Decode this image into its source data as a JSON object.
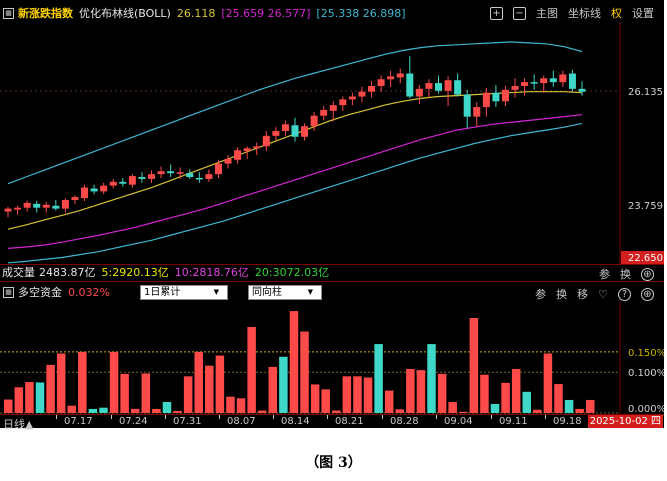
{
  "header": {
    "main_label": "新涨跌指数",
    "indicator": "优化布林线(BOLL)",
    "mid_value": "26.118",
    "upper_pair": "[25.659 26.577]",
    "lower_pair": "[25.338 26.898]",
    "buttons": {
      "main": "主图",
      "coord": "坐标线",
      "weight": "权",
      "settings": "设置"
    }
  },
  "price_axis": {
    "labels": [
      "26.135",
      "23.759",
      "22.650"
    ]
  },
  "volume": {
    "label": "成交量",
    "total": "2483.87亿",
    "ma5": "5:2920.13亿",
    "ma10": "10:2818.76亿",
    "ma20": "20:3072.03亿",
    "tools": [
      "参",
      "换"
    ]
  },
  "flow": {
    "title": "多空资金",
    "value": "0.032%",
    "select_accum": "1日累计",
    "select_mode": "同向柱",
    "tools": [
      "参",
      "换",
      "移"
    ],
    "axis_labels": [
      "0.150%",
      "0.100%",
      "0.000%"
    ],
    "bars": [
      {
        "v": 0.033,
        "c": "red"
      },
      {
        "v": 0.063,
        "c": "red"
      },
      {
        "v": 0.076,
        "c": "red"
      },
      {
        "v": 0.075,
        "c": "cyan"
      },
      {
        "v": 0.118,
        "c": "red"
      },
      {
        "v": 0.146,
        "c": "red"
      },
      {
        "v": 0.018,
        "c": "red"
      },
      {
        "v": 0.15,
        "c": "red"
      },
      {
        "v": 0.01,
        "c": "cyan"
      },
      {
        "v": 0.013,
        "c": "cyan"
      },
      {
        "v": 0.15,
        "c": "red"
      },
      {
        "v": 0.096,
        "c": "red"
      },
      {
        "v": 0.01,
        "c": "red"
      },
      {
        "v": 0.097,
        "c": "red"
      },
      {
        "v": 0.01,
        "c": "red"
      },
      {
        "v": 0.027,
        "c": "cyan"
      },
      {
        "v": 0.005,
        "c": "red"
      },
      {
        "v": 0.09,
        "c": "red"
      },
      {
        "v": 0.15,
        "c": "red"
      },
      {
        "v": 0.116,
        "c": "red"
      },
      {
        "v": 0.141,
        "c": "red"
      },
      {
        "v": 0.04,
        "c": "red"
      },
      {
        "v": 0.036,
        "c": "red"
      },
      {
        "v": 0.211,
        "c": "red"
      },
      {
        "v": 0.006,
        "c": "red"
      },
      {
        "v": 0.113,
        "c": "red"
      },
      {
        "v": 0.138,
        "c": "cyan"
      },
      {
        "v": 0.25,
        "c": "red"
      },
      {
        "v": 0.2,
        "c": "red"
      },
      {
        "v": 0.07,
        "c": "red"
      },
      {
        "v": 0.058,
        "c": "red"
      },
      {
        "v": 0.006,
        "c": "red"
      },
      {
        "v": 0.09,
        "c": "red"
      },
      {
        "v": 0.09,
        "c": "red"
      },
      {
        "v": 0.087,
        "c": "red"
      },
      {
        "v": 0.169,
        "c": "cyan"
      },
      {
        "v": 0.055,
        "c": "red"
      },
      {
        "v": 0.009,
        "c": "red"
      },
      {
        "v": 0.108,
        "c": "red"
      },
      {
        "v": 0.105,
        "c": "red"
      },
      {
        "v": 0.169,
        "c": "cyan"
      },
      {
        "v": 0.096,
        "c": "red"
      },
      {
        "v": 0.027,
        "c": "red"
      },
      {
        "v": 0.003,
        "c": "red"
      },
      {
        "v": 0.233,
        "c": "red"
      },
      {
        "v": 0.094,
        "c": "red"
      },
      {
        "v": 0.022,
        "c": "cyan"
      },
      {
        "v": 0.074,
        "c": "red"
      },
      {
        "v": 0.108,
        "c": "red"
      },
      {
        "v": 0.052,
        "c": "cyan"
      },
      {
        "v": 0.008,
        "c": "red"
      },
      {
        "v": 0.146,
        "c": "red"
      },
      {
        "v": 0.071,
        "c": "red"
      },
      {
        "v": 0.032,
        "c": "cyan"
      },
      {
        "v": 0.01,
        "c": "red"
      },
      {
        "v": 0.032,
        "c": "red"
      }
    ]
  },
  "footer": {
    "period": "日线",
    "dates": [
      "07.17",
      "07.24",
      "07.31",
      "08.07",
      "08.14",
      "08.21",
      "08.28",
      "09.04",
      "09.11",
      "09.18"
    ],
    "current_date": "2025-10-02 四"
  },
  "caption": "（图 3）",
  "colors": {
    "up": "#ff4a4a",
    "down": "#3fd7c8",
    "boll_upper": "#3fb7d2",
    "boll_mid": "#d7c336",
    "boll_lower": "#d424d4",
    "ma5": "#e8e800",
    "ma10": "#e040e0",
    "ma20": "#30d030"
  },
  "chart_data": {
    "type": "candlestick",
    "ylim": [
      22.65,
      27.45
    ],
    "candles": [
      {
        "o": 23.62,
        "h": 23.72,
        "l": 23.5,
        "c": 23.68
      },
      {
        "o": 23.66,
        "h": 23.74,
        "l": 23.55,
        "c": 23.7
      },
      {
        "o": 23.7,
        "h": 23.85,
        "l": 23.62,
        "c": 23.8
      },
      {
        "o": 23.78,
        "h": 23.84,
        "l": 23.6,
        "c": 23.7
      },
      {
        "o": 23.7,
        "h": 23.82,
        "l": 23.6,
        "c": 23.76
      },
      {
        "o": 23.74,
        "h": 23.86,
        "l": 23.64,
        "c": 23.68
      },
      {
        "o": 23.68,
        "h": 23.9,
        "l": 23.6,
        "c": 23.86
      },
      {
        "o": 23.86,
        "h": 23.96,
        "l": 23.78,
        "c": 23.92
      },
      {
        "o": 23.9,
        "h": 24.18,
        "l": 23.84,
        "c": 24.12
      },
      {
        "o": 24.1,
        "h": 24.18,
        "l": 23.98,
        "c": 24.04
      },
      {
        "o": 24.04,
        "h": 24.22,
        "l": 23.98,
        "c": 24.16
      },
      {
        "o": 24.16,
        "h": 24.3,
        "l": 24.1,
        "c": 24.24
      },
      {
        "o": 24.24,
        "h": 24.32,
        "l": 24.14,
        "c": 24.2
      },
      {
        "o": 24.18,
        "h": 24.4,
        "l": 24.12,
        "c": 24.36
      },
      {
        "o": 24.34,
        "h": 24.44,
        "l": 24.22,
        "c": 24.3
      },
      {
        "o": 24.3,
        "h": 24.48,
        "l": 24.22,
        "c": 24.4
      },
      {
        "o": 24.4,
        "h": 24.56,
        "l": 24.32,
        "c": 24.46
      },
      {
        "o": 24.46,
        "h": 24.6,
        "l": 24.34,
        "c": 24.42
      },
      {
        "o": 24.42,
        "h": 24.54,
        "l": 24.3,
        "c": 24.44
      },
      {
        "o": 24.42,
        "h": 24.5,
        "l": 24.3,
        "c": 24.34
      },
      {
        "o": 24.32,
        "h": 24.44,
        "l": 24.22,
        "c": 24.3
      },
      {
        "o": 24.3,
        "h": 24.5,
        "l": 24.24,
        "c": 24.4
      },
      {
        "o": 24.4,
        "h": 24.7,
        "l": 24.32,
        "c": 24.62
      },
      {
        "o": 24.62,
        "h": 24.8,
        "l": 24.52,
        "c": 24.72
      },
      {
        "o": 24.7,
        "h": 24.96,
        "l": 24.62,
        "c": 24.9
      },
      {
        "o": 24.88,
        "h": 24.98,
        "l": 24.72,
        "c": 24.94
      },
      {
        "o": 24.94,
        "h": 25.06,
        "l": 24.8,
        "c": 24.98
      },
      {
        "o": 24.98,
        "h": 25.3,
        "l": 24.88,
        "c": 25.2
      },
      {
        "o": 25.2,
        "h": 25.38,
        "l": 25.1,
        "c": 25.3
      },
      {
        "o": 25.3,
        "h": 25.52,
        "l": 25.2,
        "c": 25.44
      },
      {
        "o": 25.42,
        "h": 25.58,
        "l": 25.08,
        "c": 25.18
      },
      {
        "o": 25.18,
        "h": 25.46,
        "l": 25.1,
        "c": 25.4
      },
      {
        "o": 25.4,
        "h": 25.7,
        "l": 25.3,
        "c": 25.62
      },
      {
        "o": 25.62,
        "h": 25.82,
        "l": 25.52,
        "c": 25.74
      },
      {
        "o": 25.72,
        "h": 25.92,
        "l": 25.5,
        "c": 25.84
      },
      {
        "o": 25.84,
        "h": 26.02,
        "l": 25.72,
        "c": 25.96
      },
      {
        "o": 25.96,
        "h": 26.1,
        "l": 25.84,
        "c": 26.02
      },
      {
        "o": 26.02,
        "h": 26.22,
        "l": 25.9,
        "c": 26.12
      },
      {
        "o": 26.12,
        "h": 26.34,
        "l": 26.0,
        "c": 26.24
      },
      {
        "o": 26.24,
        "h": 26.46,
        "l": 26.12,
        "c": 26.38
      },
      {
        "o": 26.38,
        "h": 26.56,
        "l": 26.22,
        "c": 26.44
      },
      {
        "o": 26.42,
        "h": 26.6,
        "l": 26.3,
        "c": 26.5
      },
      {
        "o": 26.5,
        "h": 26.86,
        "l": 25.98,
        "c": 26.02
      },
      {
        "o": 26.02,
        "h": 26.26,
        "l": 25.86,
        "c": 26.18
      },
      {
        "o": 26.18,
        "h": 26.38,
        "l": 26.0,
        "c": 26.3
      },
      {
        "o": 26.3,
        "h": 26.46,
        "l": 26.08,
        "c": 26.14
      },
      {
        "o": 26.14,
        "h": 26.44,
        "l": 25.82,
        "c": 26.36
      },
      {
        "o": 26.36,
        "h": 26.5,
        "l": 26.02,
        "c": 26.06
      },
      {
        "o": 26.06,
        "h": 26.16,
        "l": 25.36,
        "c": 25.6
      },
      {
        "o": 25.6,
        "h": 25.9,
        "l": 25.4,
        "c": 25.8
      },
      {
        "o": 25.8,
        "h": 26.2,
        "l": 25.6,
        "c": 26.1
      },
      {
        "o": 26.1,
        "h": 26.26,
        "l": 25.8,
        "c": 25.92
      },
      {
        "o": 25.92,
        "h": 26.24,
        "l": 25.82,
        "c": 26.16
      },
      {
        "o": 26.16,
        "h": 26.4,
        "l": 26.0,
        "c": 26.24
      },
      {
        "o": 26.24,
        "h": 26.4,
        "l": 26.04,
        "c": 26.32
      },
      {
        "o": 26.32,
        "h": 26.48,
        "l": 26.16,
        "c": 26.3
      },
      {
        "o": 26.3,
        "h": 26.46,
        "l": 26.1,
        "c": 26.4
      },
      {
        "o": 26.4,
        "h": 26.56,
        "l": 26.22,
        "c": 26.32
      },
      {
        "o": 26.32,
        "h": 26.56,
        "l": 26.22,
        "c": 26.48
      },
      {
        "o": 26.5,
        "h": 26.58,
        "l": 26.12,
        "c": 26.18
      },
      {
        "o": 26.18,
        "h": 26.34,
        "l": 26.04,
        "c": 26.12
      }
    ],
    "boll_upper": [
      24.2,
      24.34,
      24.48,
      24.62,
      24.76,
      24.9,
      25.04,
      25.18,
      25.32,
      25.46,
      25.6,
      25.74,
      25.88,
      26.02,
      26.16,
      26.28,
      26.4,
      26.5,
      26.6,
      26.7,
      26.8,
      26.9,
      26.98,
      27.04,
      27.08,
      27.1,
      27.12,
      27.14,
      27.16,
      27.14,
      27.12,
      27.06,
      26.96
    ],
    "boll_mid": [
      23.25,
      23.34,
      23.44,
      23.54,
      23.64,
      23.76,
      23.88,
      24.0,
      24.12,
      24.26,
      24.4,
      24.54,
      24.68,
      24.82,
      24.96,
      25.1,
      25.24,
      25.38,
      25.52,
      25.64,
      25.74,
      25.84,
      25.92,
      25.98,
      26.02,
      26.04,
      26.06,
      26.08,
      26.1,
      26.12,
      26.12,
      26.12,
      26.1
    ],
    "boll_lower": [
      22.85,
      22.88,
      22.92,
      22.98,
      23.05,
      23.12,
      23.2,
      23.28,
      23.38,
      23.48,
      23.58,
      23.68,
      23.8,
      23.92,
      24.04,
      24.16,
      24.28,
      24.4,
      24.52,
      24.64,
      24.76,
      24.88,
      25.0,
      25.12,
      25.22,
      25.32,
      25.38,
      25.44,
      25.48,
      25.52,
      25.56,
      25.6,
      25.64
    ],
    "boll_outer": [
      22.55,
      22.58,
      22.62,
      22.66,
      22.72,
      22.78,
      22.86,
      22.94,
      23.02,
      23.12,
      23.22,
      23.32,
      23.42,
      23.54,
      23.66,
      23.78,
      23.9,
      24.02,
      24.14,
      24.26,
      24.38,
      24.5,
      24.62,
      24.74,
      24.84,
      24.94,
      25.04,
      25.12,
      25.2,
      25.26,
      25.32,
      25.38,
      25.46
    ]
  }
}
